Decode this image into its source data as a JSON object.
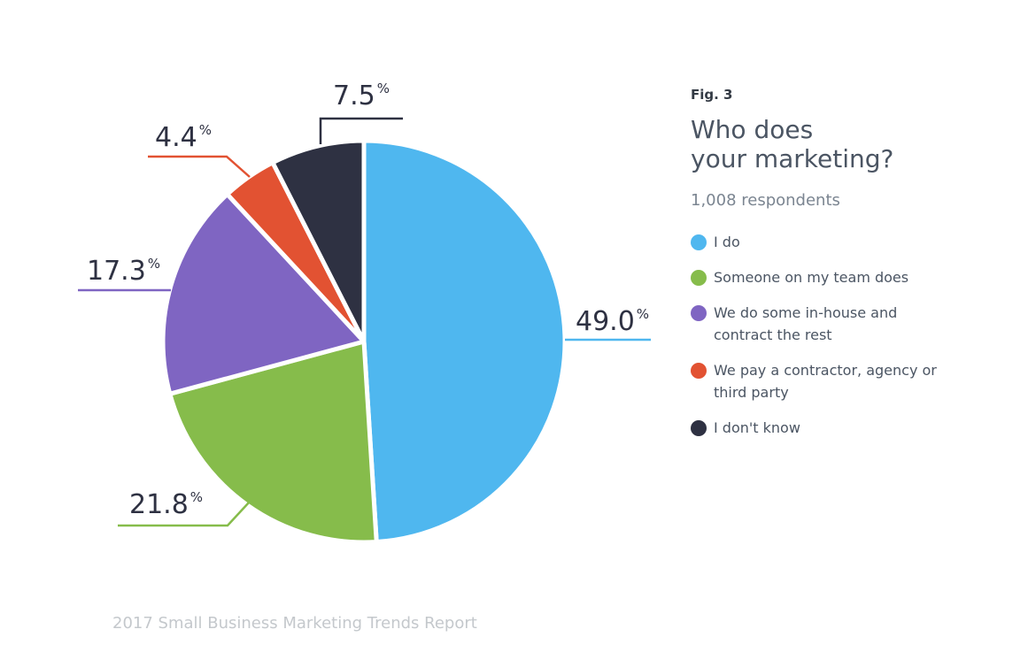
{
  "chart_data": {
    "type": "pie",
    "figure_label": "Fig. 3",
    "title": "Who does\nyour marketing?",
    "subtitle": "1,008 respondents",
    "start_angle_deg": 0,
    "direction": "clockwise",
    "slices": [
      {
        "label": "I do",
        "value": 49.0,
        "display": "49.0",
        "color": "#4fb7ef"
      },
      {
        "label": "Someone on my team does",
        "value": 21.8,
        "display": "21.8",
        "color": "#86bc4b"
      },
      {
        "label": "We do some in-house and contract the rest",
        "value": 17.3,
        "display": "17.3",
        "color": "#7f65c2"
      },
      {
        "label": "We pay a contractor, agency or third party",
        "value": 4.4,
        "display": "4.4",
        "color": "#e25232"
      },
      {
        "label": "I don't know",
        "value": 7.5,
        "display": "7.5",
        "color": "#2e3142"
      }
    ],
    "value_suffix": "%",
    "legend_position": "right"
  },
  "footer": "2017 Small Business Marketing Trends Report"
}
